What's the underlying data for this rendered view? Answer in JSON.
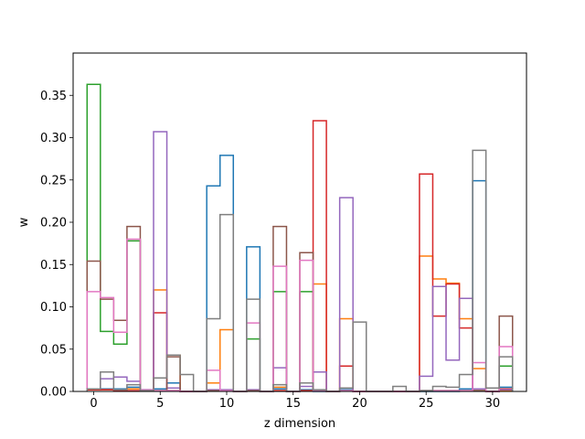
{
  "chart_data": {
    "type": "step",
    "title": "",
    "xlabel": "z dimension",
    "ylabel": "w",
    "xlim": [
      -1.55,
      32.55
    ],
    "ylim": [
      0,
      0.4
    ],
    "x_ticks": [
      0,
      5,
      10,
      15,
      20,
      25,
      30
    ],
    "y_ticks": [
      0.0,
      0.05,
      0.1,
      0.15,
      0.2,
      0.25,
      0.3,
      0.35
    ],
    "y_tick_labels": [
      "0.00",
      "0.05",
      "0.10",
      "0.15",
      "0.20",
      "0.25",
      "0.30",
      "0.35"
    ],
    "x": [
      0,
      1,
      2,
      3,
      4,
      5,
      6,
      7,
      8,
      9,
      10,
      11,
      12,
      13,
      14,
      15,
      16,
      17,
      18,
      19,
      20,
      21,
      22,
      23,
      24,
      25,
      26,
      27,
      28,
      29,
      30,
      31
    ],
    "legend": false,
    "grid": false,
    "series": [
      {
        "color": "#1f77b4",
        "values": [
          0.002,
          0.003,
          0.003,
          0.005,
          0.002,
          0.003,
          0.01,
          0,
          0,
          0.243,
          0.279,
          0,
          0.171,
          0,
          0.003,
          0,
          0.002,
          0,
          0,
          0.002,
          0,
          0,
          0,
          0,
          0,
          0,
          0,
          0,
          0.003,
          0.249,
          0,
          0.005
        ]
      },
      {
        "color": "#ff7f0e",
        "values": [
          0.002,
          0.002,
          0.001,
          0.003,
          0.001,
          0.12,
          0.043,
          0,
          0,
          0.01,
          0.073,
          0,
          0.001,
          0,
          0.005,
          0,
          0.001,
          0.127,
          0,
          0.086,
          0,
          0,
          0,
          0,
          0,
          0.16,
          0.133,
          0.128,
          0.086,
          0.027,
          0,
          0.001
        ]
      },
      {
        "color": "#2ca02c",
        "values": [
          0.363,
          0.071,
          0.056,
          0.178,
          0.001,
          0.001,
          0.001,
          0,
          0,
          0.001,
          0.001,
          0,
          0.062,
          0,
          0.118,
          0,
          0.118,
          0.001,
          0,
          0.001,
          0,
          0,
          0,
          0,
          0,
          0.001,
          0.001,
          0.001,
          0.001,
          0.001,
          0,
          0.03
        ]
      },
      {
        "color": "#d62728",
        "values": [
          0.002,
          0.002,
          0.001,
          0.001,
          0.001,
          0.093,
          0.001,
          0,
          0,
          0.001,
          0.001,
          0,
          0.001,
          0,
          0.001,
          0,
          0.001,
          0.32,
          0,
          0.03,
          0,
          0,
          0,
          0,
          0,
          0.257,
          0.089,
          0.127,
          0.075,
          0.001,
          0,
          0.003
        ]
      },
      {
        "color": "#9467bd",
        "values": [
          0.003,
          0.015,
          0.017,
          0.012,
          0.001,
          0.307,
          0.004,
          0,
          0,
          0.002,
          0.002,
          0,
          0.002,
          0,
          0.028,
          0,
          0.006,
          0.023,
          0,
          0.229,
          0,
          0,
          0,
          0,
          0,
          0.018,
          0.124,
          0.037,
          0.11,
          0.003,
          0,
          0.002
        ]
      },
      {
        "color": "#8c564b",
        "values": [
          0.154,
          0.109,
          0.084,
          0.195,
          0.001,
          0.001,
          0.041,
          0,
          0,
          0.001,
          0.001,
          0,
          0.001,
          0,
          0.195,
          0,
          0.164,
          0.001,
          0,
          0.001,
          0,
          0,
          0,
          0,
          0,
          0.001,
          0.001,
          0.001,
          0.001,
          0.001,
          0,
          0.089
        ]
      },
      {
        "color": "#e377c2",
        "values": [
          0.118,
          0.111,
          0.07,
          0.18,
          0.002,
          0.001,
          0.001,
          0,
          0,
          0.025,
          0.001,
          0,
          0.081,
          0,
          0.148,
          0,
          0.155,
          0.001,
          0,
          0.001,
          0,
          0,
          0,
          0,
          0,
          0.001,
          0.001,
          0.001,
          0.001,
          0.034,
          0,
          0.053
        ]
      },
      {
        "color": "#7f7f7f",
        "values": [
          0.003,
          0.023,
          0.002,
          0.008,
          0.001,
          0.016,
          0.043,
          0.02,
          0,
          0.086,
          0.209,
          0,
          0.109,
          0,
          0.008,
          0,
          0.01,
          0.002,
          0,
          0.004,
          0.082,
          0,
          0,
          0.006,
          0,
          0.001,
          0.006,
          0.005,
          0.02,
          0.285,
          0.004,
          0.041
        ]
      }
    ]
  }
}
